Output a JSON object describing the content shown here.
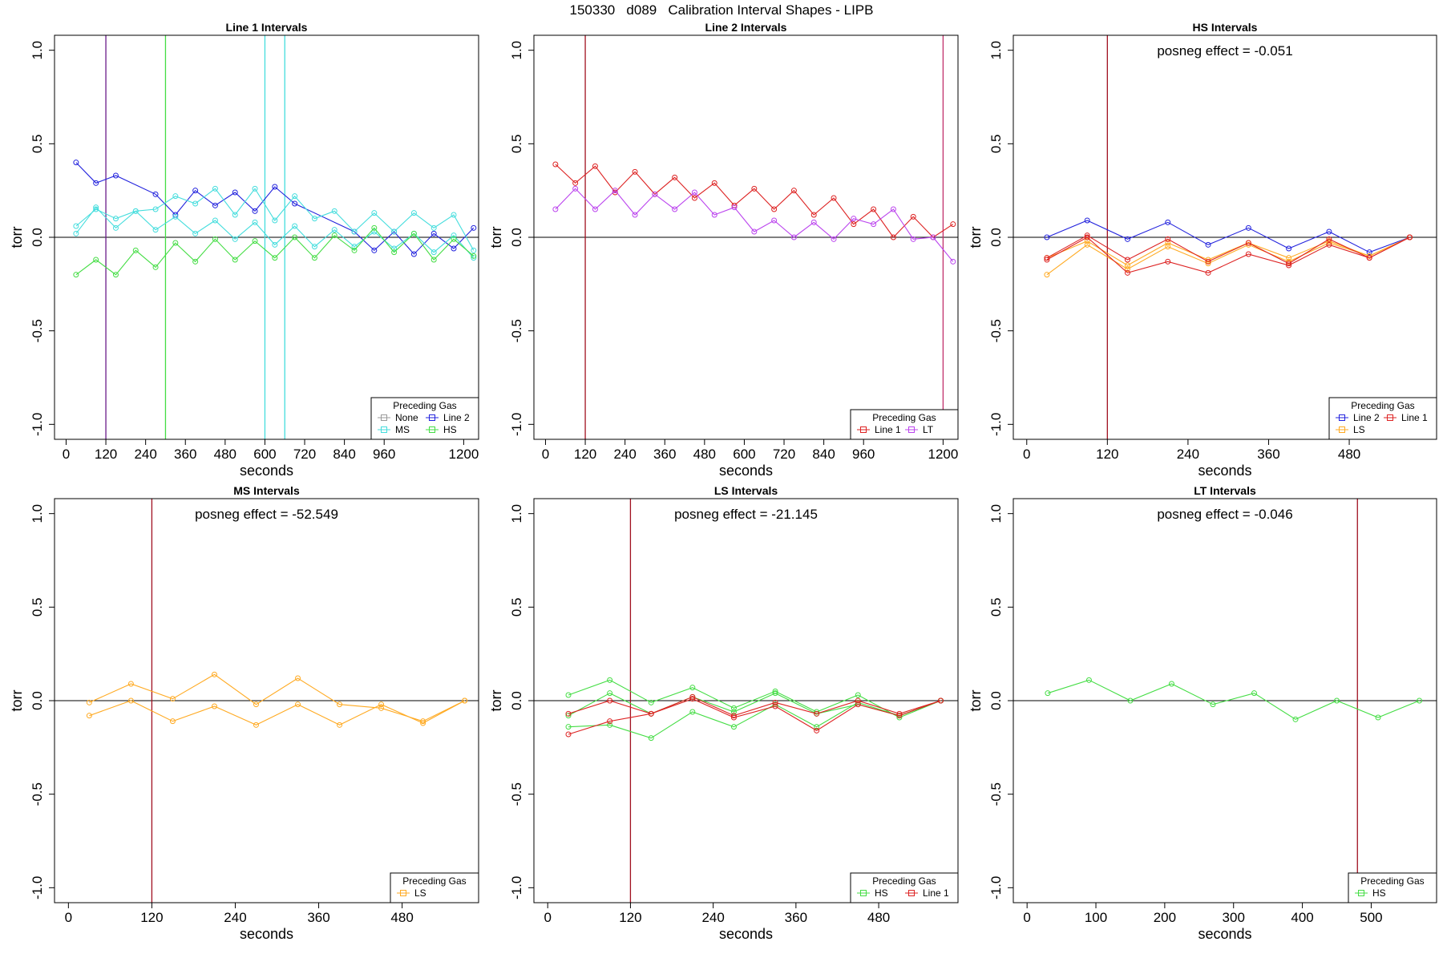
{
  "page_title": "150330   d089   Calibration Interval Shapes - LIPB",
  "colors": {
    "None": "#999999",
    "Line 2": "#2222dd",
    "MS": "#44dddd",
    "HS": "#44dd44",
    "Line 1": "#dd2222",
    "LT": "#bb44ee",
    "LS": "#ffaa22",
    "zero_line": "#000000",
    "frame": "#000000"
  },
  "chart_data": [
    {
      "id": "line1",
      "type": "line",
      "title": "Line 1 Intervals",
      "xlabel": "seconds",
      "ylabel": "torr",
      "xlim": [
        -35,
        1245
      ],
      "ylim": [
        -1.08,
        1.08
      ],
      "xticks": [
        0,
        120,
        240,
        360,
        480,
        600,
        720,
        840,
        960,
        1200
      ],
      "yticks": [
        -1.0,
        -0.5,
        0.0,
        0.5,
        1.0
      ],
      "ytick_labels": [
        "-1.0",
        "-0.5",
        "0.0",
        "0.5",
        "1.0"
      ],
      "zero_line": true,
      "annotation": "",
      "vlines": [
        {
          "x": 120,
          "color": "#6a1b8a"
        },
        {
          "x": 300,
          "color": "#44dd44"
        },
        {
          "x": 600,
          "color": "#44dddd"
        },
        {
          "x": 660,
          "color": "#44dddd"
        }
      ],
      "legend": {
        "title": "Preceding Gas",
        "position": "bottom-right",
        "columns": 2,
        "entries": [
          "None",
          "MS",
          "Line 2",
          "HS"
        ]
      },
      "series": [
        {
          "name": "Line 2",
          "x": [
            30,
            90,
            150,
            270,
            330,
            390,
            450,
            510,
            570,
            630,
            690,
            870,
            930,
            990,
            1050,
            1110,
            1170,
            1230
          ],
          "y": [
            0.4,
            0.29,
            0.33,
            0.23,
            0.12,
            0.25,
            0.17,
            0.24,
            0.14,
            0.27,
            0.18,
            0.03,
            -0.07,
            0.03,
            -0.09,
            0.02,
            -0.06,
            0.05
          ]
        },
        {
          "name": "MS",
          "x": [
            30,
            90,
            150,
            210,
            270,
            330,
            390,
            450,
            510,
            570,
            630,
            690,
            750,
            810,
            870,
            930,
            990,
            1050,
            1110,
            1170,
            1230
          ],
          "y": [
            0.06,
            0.15,
            0.1,
            0.14,
            0.15,
            0.22,
            0.18,
            0.26,
            0.12,
            0.26,
            0.09,
            0.22,
            0.1,
            0.14,
            0.03,
            0.13,
            0.03,
            0.13,
            0.05,
            0.12,
            -0.07
          ]
        },
        {
          "name": "MS",
          "x": [
            30,
            90,
            150,
            210,
            270,
            330,
            390,
            450,
            510,
            570,
            630,
            690,
            750,
            810,
            870,
            930,
            990,
            1050,
            1110,
            1170,
            1230
          ],
          "y": [
            0.02,
            0.16,
            0.05,
            0.14,
            0.04,
            0.11,
            0.02,
            0.09,
            -0.01,
            0.08,
            -0.04,
            0.06,
            -0.05,
            0.04,
            -0.05,
            0.03,
            -0.06,
            0.02,
            -0.08,
            0.01,
            -0.11
          ]
        },
        {
          "name": "HS",
          "x": [
            30,
            90,
            150,
            210,
            270,
            330,
            390,
            450,
            510,
            570,
            630,
            690,
            750,
            810,
            870,
            930,
            990,
            1050,
            1110,
            1170,
            1230
          ],
          "y": [
            -0.2,
            -0.12,
            -0.2,
            -0.07,
            -0.16,
            -0.03,
            -0.13,
            -0.01,
            -0.12,
            -0.02,
            -0.11,
            0.0,
            -0.11,
            0.01,
            -0.07,
            0.05,
            -0.08,
            0.02,
            -0.12,
            -0.01,
            -0.1
          ]
        }
      ]
    },
    {
      "id": "line2",
      "type": "line",
      "title": "Line 2 Intervals",
      "xlabel": "seconds",
      "ylabel": "torr",
      "xlim": [
        -35,
        1245
      ],
      "ylim": [
        -1.08,
        1.08
      ],
      "xticks": [
        0,
        120,
        240,
        360,
        480,
        600,
        720,
        840,
        960,
        1200
      ],
      "yticks": [
        -1.0,
        -0.5,
        0.0,
        0.5,
        1.0
      ],
      "ytick_labels": [
        "-1.0",
        "-0.5",
        "0.0",
        "0.5",
        "1.0"
      ],
      "zero_line": true,
      "annotation": "",
      "vlines": [
        {
          "x": 120,
          "color": "#a01020"
        },
        {
          "x": 1200,
          "color": "#c0306a"
        }
      ],
      "legend": {
        "title": "Preceding Gas",
        "position": "bottom-right",
        "columns": 2,
        "entries": [
          "Line 1",
          "LT"
        ]
      },
      "series": [
        {
          "name": "Line 1",
          "x": [
            30,
            90,
            150,
            210,
            270,
            330,
            390,
            450,
            510,
            570,
            630,
            690,
            750,
            810,
            870,
            930,
            990,
            1050,
            1110,
            1170,
            1230
          ],
          "y": [
            0.39,
            0.29,
            0.38,
            0.24,
            0.35,
            0.23,
            0.32,
            0.21,
            0.29,
            0.17,
            0.26,
            0.15,
            0.25,
            0.12,
            0.21,
            0.07,
            0.15,
            0.0,
            0.11,
            0.0,
            0.07
          ]
        },
        {
          "name": "LT",
          "x": [
            30,
            90,
            150,
            210,
            270,
            330,
            390,
            450,
            510,
            570,
            630,
            690,
            750,
            810,
            870,
            930,
            990,
            1050,
            1110,
            1170,
            1230
          ],
          "y": [
            0.15,
            0.26,
            0.15,
            0.25,
            0.12,
            0.23,
            0.15,
            0.24,
            0.12,
            0.16,
            0.03,
            0.09,
            0.0,
            0.08,
            -0.01,
            0.1,
            0.07,
            0.15,
            -0.01,
            0.0,
            -0.13
          ]
        }
      ]
    },
    {
      "id": "hs",
      "type": "line",
      "title": "HS Intervals",
      "xlabel": "seconds",
      "ylabel": "torr",
      "xlim": [
        -20,
        610
      ],
      "ylim": [
        -1.08,
        1.08
      ],
      "xticks": [
        0,
        120,
        240,
        360,
        480
      ],
      "yticks": [
        -1.0,
        -0.5,
        0.0,
        0.5,
        1.0
      ],
      "ytick_labels": [
        "-1.0",
        "-0.5",
        "0.0",
        "0.5",
        "1.0"
      ],
      "zero_line": true,
      "annotation": "posneg effect = -0.051",
      "vlines": [
        {
          "x": 120,
          "color": "#a01020"
        }
      ],
      "legend": {
        "title": "Preceding Gas",
        "position": "bottom-right",
        "columns": 2,
        "entries": [
          "Line 2",
          "LS",
          "Line 1"
        ]
      },
      "series": [
        {
          "name": "Line 2",
          "x": [
            30,
            90,
            150,
            210,
            270,
            330,
            390,
            450,
            510,
            570
          ],
          "y": [
            0.0,
            0.09,
            -0.01,
            0.08,
            -0.04,
            0.05,
            -0.06,
            0.03,
            -0.08,
            0.0
          ]
        },
        {
          "name": "LS",
          "x": [
            30,
            90,
            150,
            210,
            270,
            330,
            390,
            450,
            510,
            570
          ],
          "y": [
            -0.2,
            -0.04,
            -0.17,
            -0.05,
            -0.14,
            -0.04,
            -0.13,
            -0.03,
            -0.1,
            0.0
          ]
        },
        {
          "name": "LS",
          "x": [
            30,
            90,
            150,
            210,
            270,
            330,
            390,
            450,
            510,
            570
          ],
          "y": [
            -0.11,
            -0.02,
            -0.15,
            -0.03,
            -0.12,
            -0.03,
            -0.11,
            -0.02,
            -0.1,
            0.0
          ]
        },
        {
          "name": "Line 1",
          "x": [
            30,
            90,
            150,
            210,
            270,
            330,
            390,
            450,
            510,
            570
          ],
          "y": [
            -0.12,
            0.0,
            -0.19,
            -0.13,
            -0.19,
            -0.09,
            -0.15,
            -0.04,
            -0.11,
            0.0
          ]
        },
        {
          "name": "Line 1",
          "x": [
            30,
            90,
            150,
            210,
            270,
            330,
            390,
            450,
            510,
            570
          ],
          "y": [
            -0.11,
            0.01,
            -0.12,
            -0.01,
            -0.13,
            -0.03,
            -0.14,
            -0.01,
            -0.11,
            0.0
          ]
        }
      ]
    },
    {
      "id": "ms",
      "type": "line",
      "title": "MS Intervals",
      "xlabel": "seconds",
      "ylabel": "torr",
      "xlim": [
        -20,
        590
      ],
      "ylim": [
        -1.08,
        1.08
      ],
      "xticks": [
        0,
        120,
        240,
        360,
        480
      ],
      "yticks": [
        -1.0,
        -0.5,
        0.0,
        0.5,
        1.0
      ],
      "ytick_labels": [
        "-1.0",
        "-0.5",
        "0.0",
        "0.5",
        "1.0"
      ],
      "zero_line": true,
      "annotation": "posneg effect = -52.549",
      "vlines": [
        {
          "x": 120,
          "color": "#a01020"
        }
      ],
      "legend": {
        "title": "Preceding Gas",
        "position": "bottom-right",
        "columns": 1,
        "entries": [
          "LS"
        ]
      },
      "series": [
        {
          "name": "LS",
          "x": [
            30,
            90,
            150,
            210,
            270,
            330,
            390,
            450,
            510,
            570
          ],
          "y": [
            -0.01,
            0.09,
            0.01,
            0.14,
            -0.02,
            0.12,
            -0.02,
            -0.04,
            -0.11,
            0.0
          ]
        },
        {
          "name": "LS",
          "x": [
            30,
            90,
            150,
            210,
            270,
            330,
            390,
            450,
            510,
            570
          ],
          "y": [
            -0.08,
            0.0,
            -0.11,
            -0.03,
            -0.13,
            -0.02,
            -0.13,
            -0.02,
            -0.12,
            0.0
          ]
        }
      ]
    },
    {
      "id": "ls",
      "type": "line",
      "title": "LS Intervals",
      "xlabel": "seconds",
      "ylabel": "torr",
      "xlim": [
        -20,
        595
      ],
      "ylim": [
        -1.08,
        1.08
      ],
      "xticks": [
        0,
        120,
        240,
        360,
        480
      ],
      "yticks": [
        -1.0,
        -0.5,
        0.0,
        0.5,
        1.0
      ],
      "ytick_labels": [
        "-1.0",
        "-0.5",
        "0.0",
        "0.5",
        "1.0"
      ],
      "zero_line": true,
      "annotation": "posneg effect = -21.145",
      "vlines": [
        {
          "x": 120,
          "color": "#a01020"
        }
      ],
      "legend": {
        "title": "Preceding Gas",
        "position": "bottom-right",
        "columns": 2,
        "entries": [
          "HS",
          "Line 1"
        ]
      },
      "series": [
        {
          "name": "HS",
          "x": [
            30,
            90,
            150,
            210,
            270,
            330,
            390,
            450,
            510,
            570
          ],
          "y": [
            0.03,
            0.11,
            -0.01,
            0.07,
            -0.04,
            0.05,
            -0.06,
            0.03,
            -0.09,
            0.0
          ]
        },
        {
          "name": "HS",
          "x": [
            30,
            90,
            150,
            210,
            270,
            330,
            390,
            450,
            510,
            570
          ],
          "y": [
            -0.14,
            -0.13,
            -0.2,
            -0.06,
            -0.14,
            -0.02,
            -0.14,
            -0.01,
            -0.08,
            0.0
          ]
        },
        {
          "name": "HS",
          "x": [
            30,
            90,
            150,
            210,
            270,
            330,
            390,
            450,
            510,
            570
          ],
          "y": [
            -0.08,
            0.04,
            -0.07,
            0.02,
            -0.06,
            0.04,
            -0.07,
            -0.02,
            -0.08,
            0.0
          ]
        },
        {
          "name": "Line 1",
          "x": [
            30,
            90,
            150,
            210,
            270,
            330,
            390,
            450,
            510,
            570
          ],
          "y": [
            -0.18,
            -0.11,
            -0.07,
            0.01,
            -0.09,
            -0.03,
            -0.16,
            -0.02,
            -0.08,
            0.0
          ]
        },
        {
          "name": "Line 1",
          "x": [
            30,
            90,
            150,
            210,
            270,
            330,
            390,
            450,
            510,
            570
          ],
          "y": [
            -0.07,
            0.0,
            -0.07,
            0.02,
            -0.08,
            -0.01,
            -0.07,
            0.0,
            -0.07,
            0.0
          ]
        }
      ]
    },
    {
      "id": "lt",
      "type": "line",
      "title": "LT Intervals",
      "xlabel": "seconds",
      "ylabel": "torr",
      "xlim": [
        -20,
        595
      ],
      "ylim": [
        -1.08,
        1.08
      ],
      "xticks": [
        0,
        100,
        200,
        300,
        400,
        500
      ],
      "yticks": [
        -1.0,
        -0.5,
        0.0,
        0.5,
        1.0
      ],
      "ytick_labels": [
        "-1.0",
        "-0.5",
        "0.0",
        "0.5",
        "1.0"
      ],
      "zero_line": true,
      "annotation": "posneg effect = -0.046",
      "vlines": [
        {
          "x": 480,
          "color": "#a01020"
        }
      ],
      "legend": {
        "title": "Preceding Gas",
        "position": "bottom-right",
        "columns": 1,
        "entries": [
          "HS"
        ]
      },
      "series": [
        {
          "name": "HS",
          "x": [
            30,
            90,
            150,
            210,
            270,
            330,
            390,
            450,
            510,
            570
          ],
          "y": [
            0.04,
            0.11,
            0.0,
            0.09,
            -0.02,
            0.04,
            -0.1,
            0.0,
            -0.09,
            0.0
          ]
        }
      ]
    }
  ]
}
